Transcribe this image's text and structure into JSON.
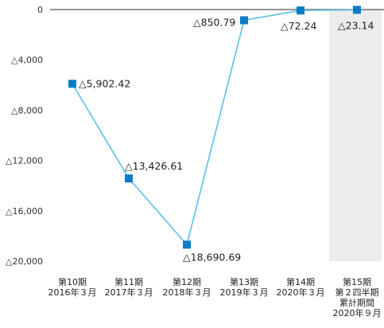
{
  "chart_data": {
    "type": "line",
    "title": "",
    "xlabel": "",
    "ylabel": "",
    "ylim": [
      -20000,
      0
    ],
    "y_ticks": [
      {
        "value": 0,
        "label": "0"
      },
      {
        "value": -4000,
        "label": "△4,000"
      },
      {
        "value": -8000,
        "label": "△8,000"
      },
      {
        "value": -12000,
        "label": "△12,000"
      },
      {
        "value": -16000,
        "label": "△16,000"
      },
      {
        "value": -20000,
        "label": "△20,000"
      }
    ],
    "categories": [
      [
        "第10期",
        "2016年３月"
      ],
      [
        "第11期",
        "2017年３月"
      ],
      [
        "第12期",
        "2018年３月"
      ],
      [
        "第13期",
        "2019年３月"
      ],
      [
        "第14期",
        "2020年３月"
      ],
      [
        "第15期",
        "第２四半期",
        "累計期間",
        "2020年９月"
      ]
    ],
    "series": [
      {
        "values": [
          -5902.42,
          -13426.61,
          -18690.69,
          -850.79,
          -72.24,
          -23.14
        ],
        "labels": [
          "△5,902.42",
          "△13,426.61",
          "△18,690.69",
          "△850.79",
          "△72.24",
          "△23.14"
        ],
        "color": "#5bc0e8",
        "marker_color": "#0a7cc6"
      }
    ],
    "highlight_category_index": 5,
    "highlight_color": "#ececec",
    "axis_color": "#555555",
    "grid": false,
    "legend": "none"
  }
}
